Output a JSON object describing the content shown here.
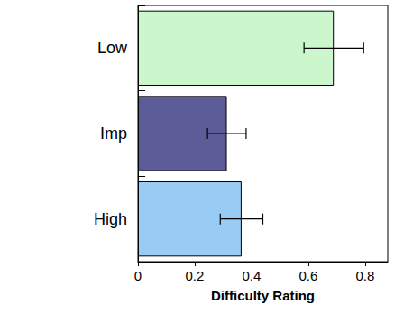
{
  "chart_data": {
    "type": "bar",
    "orientation": "horizontal",
    "categories": [
      "Low",
      "Imp",
      "High"
    ],
    "values": [
      0.69,
      0.313,
      0.365
    ],
    "errors": [
      0.105,
      0.068,
      0.075
    ],
    "colors": [
      "#ccf7cc",
      "#5c5c99",
      "#99ccf5"
    ],
    "xlabel": "Difficulty Rating",
    "xlim": [
      0,
      0.88
    ],
    "xticks": [
      0,
      0.2,
      0.4,
      0.6,
      0.8
    ],
    "grid": false
  }
}
